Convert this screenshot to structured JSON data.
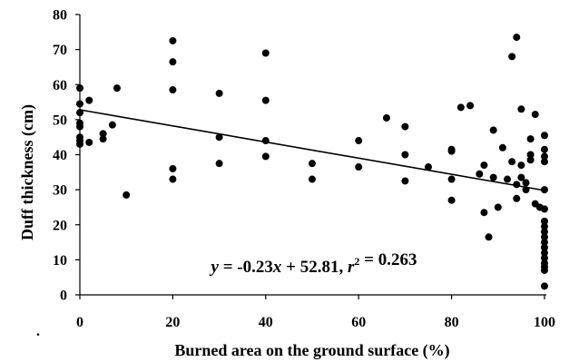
{
  "chart_data": {
    "type": "scatter",
    "title": "",
    "xlabel": "Burned area on the ground surface (%)",
    "ylabel": "Duff thickness (cm)",
    "xlim": [
      0,
      100
    ],
    "ylim": [
      0,
      80
    ],
    "xticks": [
      0,
      20,
      40,
      60,
      80,
      100
    ],
    "yticks": [
      0,
      10,
      20,
      30,
      40,
      50,
      60,
      70,
      80
    ],
    "grid": false,
    "legend": "none",
    "marker_color": "#000000",
    "annotation": {
      "parts": [
        {
          "text": "y",
          "italic": true
        },
        {
          "text": " = -0.23",
          "italic": false
        },
        {
          "text": "x",
          "italic": true
        },
        {
          "text": " + 52.81, ",
          "italic": false
        },
        {
          "text": "r",
          "italic": true
        },
        {
          "text": "2",
          "sup": true
        },
        {
          "text": " = 0.263",
          "italic": false
        }
      ]
    },
    "trendline": {
      "slope": -0.23,
      "intercept": 52.81,
      "x_range": [
        0,
        100
      ]
    },
    "stray_mark": ".",
    "series": [
      {
        "points": [
          [
            0,
            59
          ],
          [
            0,
            54.5
          ],
          [
            0,
            52
          ],
          [
            0,
            49
          ],
          [
            0,
            48
          ],
          [
            0,
            45
          ],
          [
            0,
            44
          ],
          [
            0,
            43
          ],
          [
            2,
            55.5
          ],
          [
            2,
            43.5
          ],
          [
            5,
            46
          ],
          [
            5,
            44.5
          ],
          [
            7,
            48.5
          ],
          [
            8,
            59
          ],
          [
            10,
            28.5
          ],
          [
            20,
            72.5
          ],
          [
            20,
            66.5
          ],
          [
            20,
            58.5
          ],
          [
            20,
            36
          ],
          [
            20,
            33
          ],
          [
            30,
            57.5
          ],
          [
            30,
            45
          ],
          [
            30,
            37.5
          ],
          [
            40,
            69
          ],
          [
            40,
            55.5
          ],
          [
            40,
            44
          ],
          [
            40,
            39.5
          ],
          [
            50,
            37.5
          ],
          [
            50,
            33
          ],
          [
            60,
            44
          ],
          [
            60,
            36.5
          ],
          [
            66,
            50.5
          ],
          [
            70,
            48
          ],
          [
            70,
            40
          ],
          [
            70,
            32.5
          ],
          [
            75,
            36.5
          ],
          [
            80,
            41.5
          ],
          [
            80,
            41
          ],
          [
            80,
            33
          ],
          [
            80,
            27
          ],
          [
            82,
            53.5
          ],
          [
            84,
            54
          ],
          [
            86,
            34.5
          ],
          [
            87,
            37
          ],
          [
            87,
            23.5
          ],
          [
            88,
            16.5
          ],
          [
            89,
            47
          ],
          [
            89,
            33.5
          ],
          [
            90,
            25
          ],
          [
            91,
            42
          ],
          [
            92,
            33
          ],
          [
            93,
            38
          ],
          [
            93,
            68
          ],
          [
            94,
            73.5
          ],
          [
            94,
            27.5
          ],
          [
            94,
            31.5
          ],
          [
            95,
            53
          ],
          [
            95,
            37
          ],
          [
            95,
            33.5
          ],
          [
            96,
            32
          ],
          [
            96,
            30
          ],
          [
            97,
            44.5
          ],
          [
            97,
            40
          ],
          [
            97,
            38.5
          ],
          [
            98,
            51.5
          ],
          [
            98,
            26
          ],
          [
            99,
            25
          ],
          [
            100,
            45.5
          ],
          [
            100,
            41.5
          ],
          [
            100,
            39.5
          ],
          [
            100,
            38
          ],
          [
            100,
            30
          ],
          [
            100,
            24.5
          ],
          [
            100,
            21
          ],
          [
            100,
            19.5
          ],
          [
            100,
            18
          ],
          [
            100,
            16.5
          ],
          [
            100,
            15
          ],
          [
            100,
            13.5
          ],
          [
            100,
            12
          ],
          [
            100,
            10.5
          ],
          [
            100,
            9
          ],
          [
            100,
            8
          ],
          [
            100,
            7
          ],
          [
            100,
            2.5
          ]
        ]
      }
    ]
  }
}
